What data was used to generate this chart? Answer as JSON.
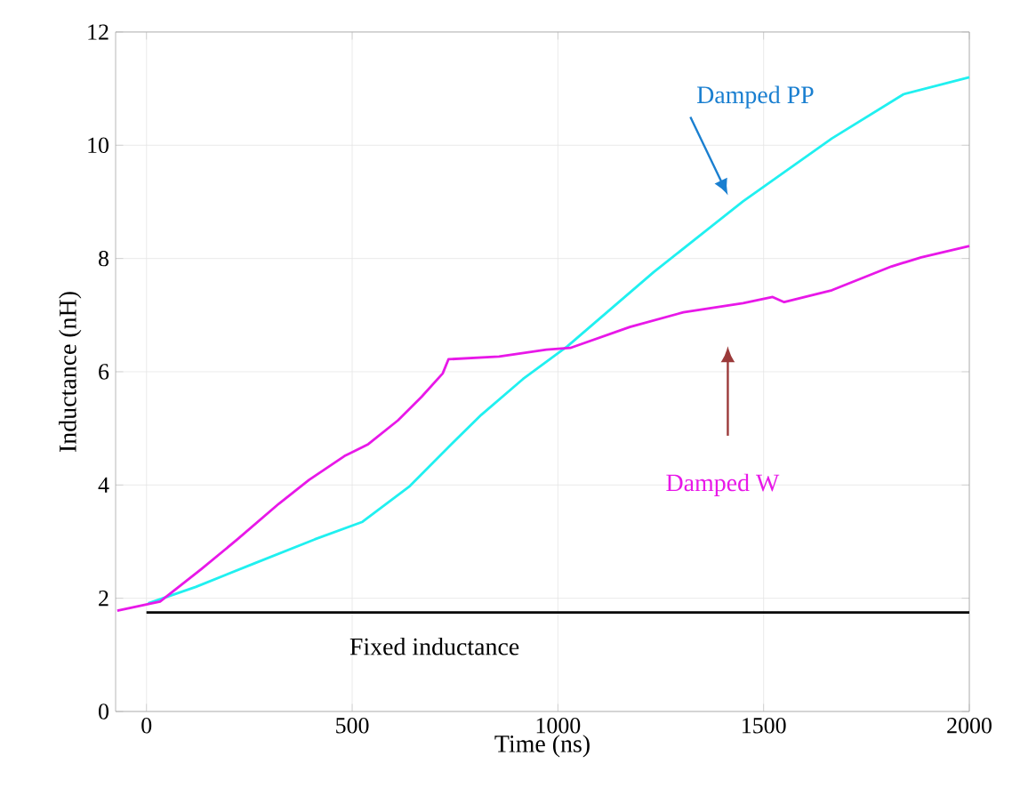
{
  "chart_data": {
    "type": "line",
    "xlabel": "Time (ns)",
    "ylabel": "Inductance (nH)",
    "xlim": [
      -75,
      2000
    ],
    "ylim": [
      0,
      12
    ],
    "xticks": [
      0,
      500,
      1000,
      1500,
      2000
    ],
    "yticks": [
      0,
      2,
      4,
      6,
      8,
      10,
      12
    ],
    "grid": true,
    "line_style": "solid",
    "series": [
      {
        "name": "Damped PP",
        "color": "#20f0f0",
        "x": [
          4,
          120,
          264,
          409,
          525,
          640,
          741,
          814,
          915,
          1023,
          1233,
          1450,
          1666,
          1840,
          2000
        ],
        "values": [
          1.91,
          2.2,
          2.62,
          3.04,
          3.35,
          3.98,
          4.72,
          5.24,
          5.87,
          6.45,
          7.76,
          9.01,
          10.12,
          10.9,
          11.2
        ]
      },
      {
        "name": "Damped W",
        "color": "#e818e8",
        "x": [
          -71,
          33,
          134,
          221,
          322,
          395,
          481,
          539,
          611,
          669,
          720,
          734,
          857,
          972,
          1030,
          1175,
          1305,
          1450,
          1522,
          1550,
          1666,
          1811,
          1883,
          2000
        ],
        "values": [
          1.78,
          1.94,
          2.52,
          3.04,
          3.67,
          4.09,
          4.51,
          4.72,
          5.14,
          5.56,
          5.97,
          6.22,
          6.27,
          6.39,
          6.42,
          6.79,
          7.05,
          7.21,
          7.32,
          7.23,
          7.44,
          7.86,
          8.02,
          8.22
        ]
      },
      {
        "name": "Fixed inductance",
        "color": "#000000",
        "x": [
          0,
          2000
        ],
        "values": [
          1.75,
          1.75
        ]
      }
    ]
  }
}
